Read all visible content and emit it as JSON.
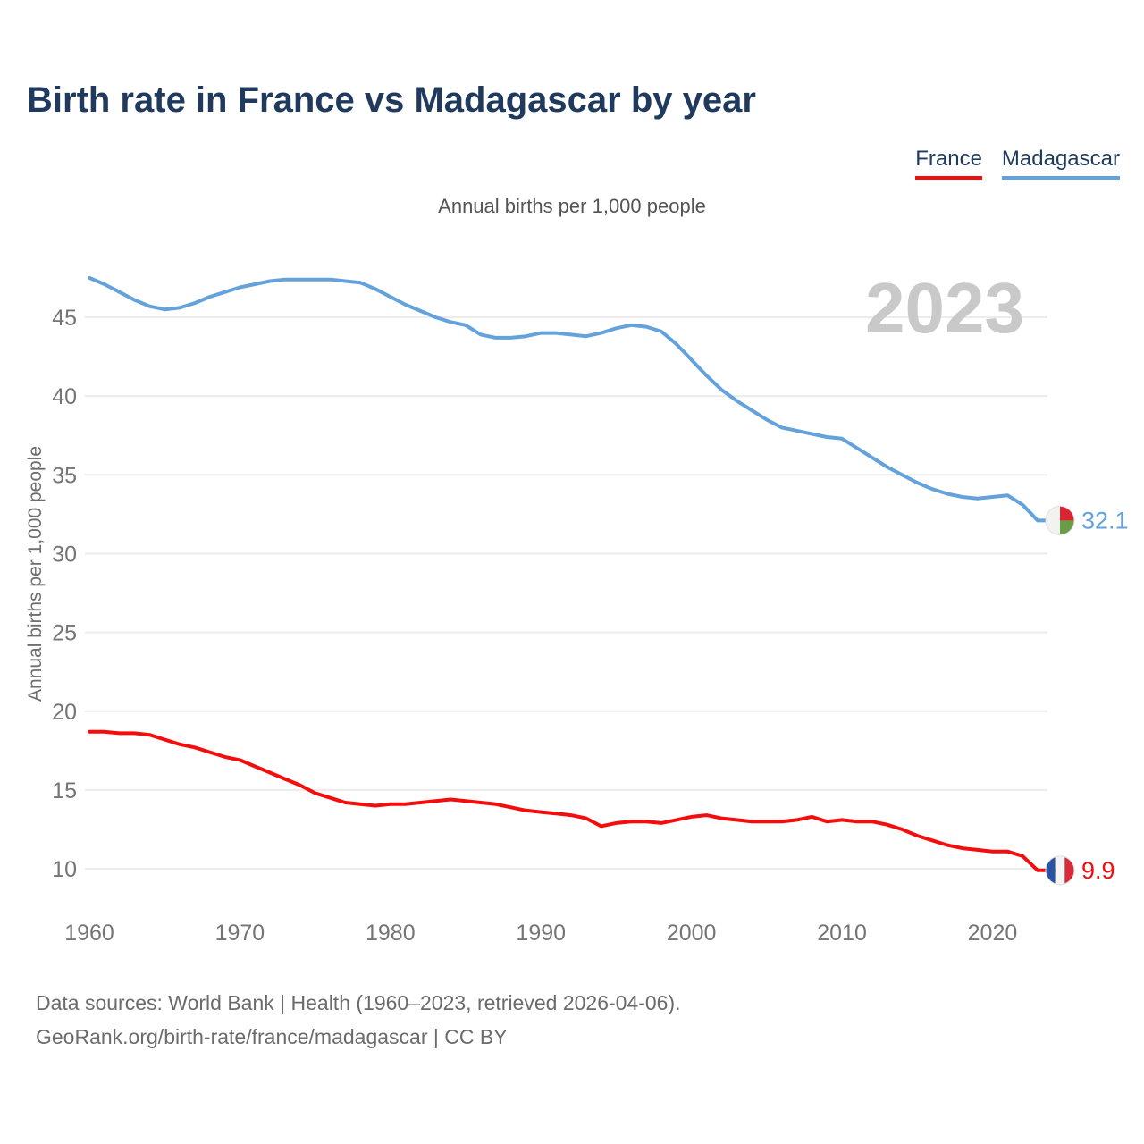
{
  "title": "Birth rate in France vs Madagascar by year",
  "subtitle": "Annual births per 1,000 people",
  "watermark": "2023",
  "legend": [
    {
      "label": "France",
      "color": "#f40d0d"
    },
    {
      "label": "Madagascar",
      "color": "#64a2dc"
    }
  ],
  "footer": {
    "line1": "Data sources: World Bank | Health (1960–2023, retrieved 2026-04-06).",
    "line2": "GeoRank.org/birth-rate/france/madagascar | CC BY"
  },
  "colors": {
    "title_navy": "#1f3a5c",
    "grid": "#ececec",
    "tick_text": "#757575",
    "watermark_gray": "#c9c9c9"
  },
  "flags": {
    "madagascar": {
      "white": "#f2f2ef",
      "red": "#d92532",
      "green": "#699c44"
    },
    "france": {
      "blue": "#2a52a2",
      "white": "#f4f4f4",
      "red": "#d52b3a"
    }
  },
  "chart_data": {
    "type": "line",
    "title": "Birth rate in France vs Madagascar by year",
    "subtitle": "Annual births per 1,000 people",
    "ylabel": "Annual births per 1,000 people",
    "xlabel": "",
    "grid": "horizontal",
    "legend_position": "top-right",
    "xlim": [
      1960,
      2023
    ],
    "ylim": [
      9,
      48.5
    ],
    "y_ticks": [
      10,
      15,
      20,
      25,
      30,
      35,
      40,
      45
    ],
    "x_ticks": [
      1960,
      1970,
      1980,
      1990,
      2000,
      2010,
      2020
    ],
    "x": [
      1960,
      1961,
      1962,
      1963,
      1964,
      1965,
      1966,
      1967,
      1968,
      1969,
      1970,
      1971,
      1972,
      1973,
      1974,
      1975,
      1976,
      1977,
      1978,
      1979,
      1980,
      1981,
      1982,
      1983,
      1984,
      1985,
      1986,
      1987,
      1988,
      1989,
      1990,
      1991,
      1992,
      1993,
      1994,
      1995,
      1996,
      1997,
      1998,
      1999,
      2000,
      2001,
      2002,
      2003,
      2004,
      2005,
      2006,
      2007,
      2008,
      2009,
      2010,
      2011,
      2012,
      2013,
      2014,
      2015,
      2016,
      2017,
      2018,
      2019,
      2020,
      2021,
      2022,
      2023
    ],
    "series": [
      {
        "name": "France",
        "color": "#f40d0d",
        "end_label": "9.9",
        "flag": "france",
        "values": [
          18.7,
          18.7,
          18.6,
          18.6,
          18.5,
          18.2,
          17.9,
          17.7,
          17.4,
          17.1,
          16.9,
          16.5,
          16.1,
          15.7,
          15.3,
          14.8,
          14.5,
          14.2,
          14.1,
          14.0,
          14.1,
          14.1,
          14.2,
          14.3,
          14.4,
          14.3,
          14.2,
          14.1,
          13.9,
          13.7,
          13.6,
          13.5,
          13.4,
          13.2,
          12.7,
          12.9,
          13.0,
          13.0,
          12.9,
          13.1,
          13.3,
          13.4,
          13.2,
          13.1,
          13.0,
          13.0,
          13.0,
          13.1,
          13.3,
          13.0,
          13.1,
          13.0,
          13.0,
          12.8,
          12.5,
          12.1,
          11.8,
          11.5,
          11.3,
          11.2,
          11.1,
          11.1,
          10.8,
          9.9
        ]
      },
      {
        "name": "Madagascar",
        "color": "#64a2dc",
        "end_label": "32.1",
        "flag": "madagascar",
        "values": [
          47.5,
          47.1,
          46.6,
          46.1,
          45.7,
          45.5,
          45.6,
          45.9,
          46.3,
          46.6,
          46.9,
          47.1,
          47.3,
          47.4,
          47.4,
          47.4,
          47.4,
          47.3,
          47.2,
          46.8,
          46.3,
          45.8,
          45.4,
          45.0,
          44.7,
          44.5,
          43.9,
          43.7,
          43.7,
          43.8,
          44.0,
          44.0,
          43.9,
          43.8,
          44.0,
          44.3,
          44.5,
          44.4,
          44.1,
          43.3,
          42.3,
          41.3,
          40.4,
          39.7,
          39.1,
          38.5,
          38.0,
          37.8,
          37.6,
          37.4,
          37.3,
          36.7,
          36.1,
          35.5,
          35.0,
          34.5,
          34.1,
          33.8,
          33.6,
          33.5,
          33.6,
          33.7,
          33.1,
          32.1
        ]
      }
    ]
  }
}
